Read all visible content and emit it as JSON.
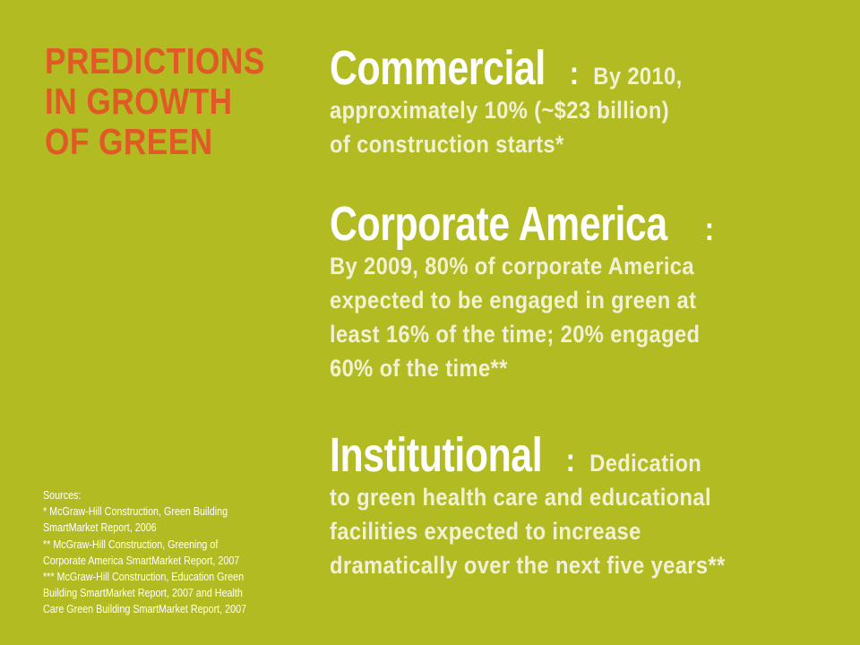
{
  "title": {
    "lines": [
      "PREDICTIONS",
      "IN GROWTH",
      "OF GREEN"
    ]
  },
  "sections": [
    {
      "heading": "Commercial",
      "colon": ":",
      "lines": [
        "By 2010,",
        "approximately 10% (~$23 billion)",
        "of construction starts*"
      ]
    },
    {
      "heading": "Corporate America",
      "colon": ":",
      "lines": [
        "By 2009, 80% of corporate America",
        "expected to be engaged in green at",
        "least 16% of the time; 20% engaged",
        "60% of the time**"
      ]
    },
    {
      "heading": "Institutional",
      "colon": ":",
      "lines": [
        "Dedication",
        "to green health care and educational",
        "facilities expected to increase",
        "dramatically over the next five years**"
      ]
    }
  ],
  "sources": {
    "lines": [
      "Sources:",
      "* McGraw-Hill Construction, Green Building",
      "SmartMarket Report, 2006",
      "** McGraw-Hill Construction, Greening of",
      "Corporate America SmartMarket Report, 2007",
      "*** McGraw-Hill Construction, Education Green",
      "Building SmartMarket Report, 2007 and Health",
      "Care Green Building SmartMarket Report, 2007"
    ]
  },
  "colors": {
    "background": "#b3bb22",
    "title": "#e05a26",
    "heading": "#ffffff",
    "body": "#f1f1d6"
  }
}
